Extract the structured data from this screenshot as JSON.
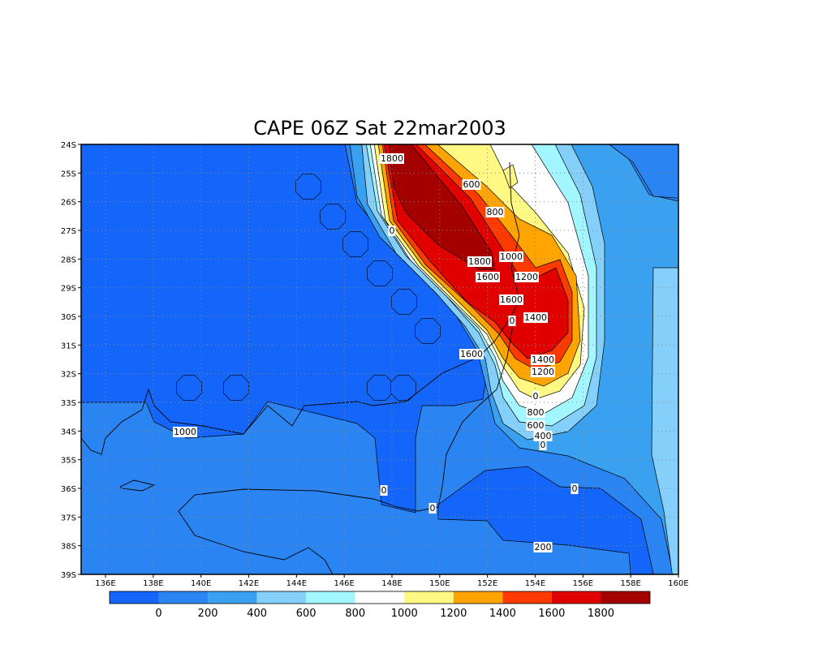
{
  "map": {
    "title": "CAPE 06Z Sat 22mar2003",
    "lat_labels": [
      "24S",
      "25S",
      "26S",
      "27S",
      "28S",
      "29S",
      "30S",
      "31S",
      "32S",
      "33S",
      "34S",
      "35S",
      "36S",
      "37S",
      "38S",
      "39S"
    ],
    "lon_labels": [
      "136E",
      "138E",
      "140E",
      "142E",
      "144E",
      "146E",
      "148E",
      "150E",
      "152E",
      "154E",
      "156E",
      "158E",
      "160E"
    ],
    "colorbar": {
      "colors": [
        "#1466fa",
        "#2a84f2",
        "#3aa0f0",
        "#84d0fa",
        "#a2f6ff",
        "#ffffff",
        "#fff882",
        "#ffa400",
        "#ff3a00",
        "#e00000",
        "#a40000"
      ],
      "levels": [
        0,
        200,
        400,
        600,
        800,
        1000,
        1200,
        1400,
        1600,
        1800
      ]
    },
    "contour_labels": [
      1800,
      600,
      800,
      0,
      1800,
      1000,
      1600,
      1200,
      1600,
      1400,
      0,
      1600,
      1400,
      1200,
      0,
      1000,
      800,
      600,
      400,
      0,
      0,
      0,
      0,
      200
    ]
  }
}
